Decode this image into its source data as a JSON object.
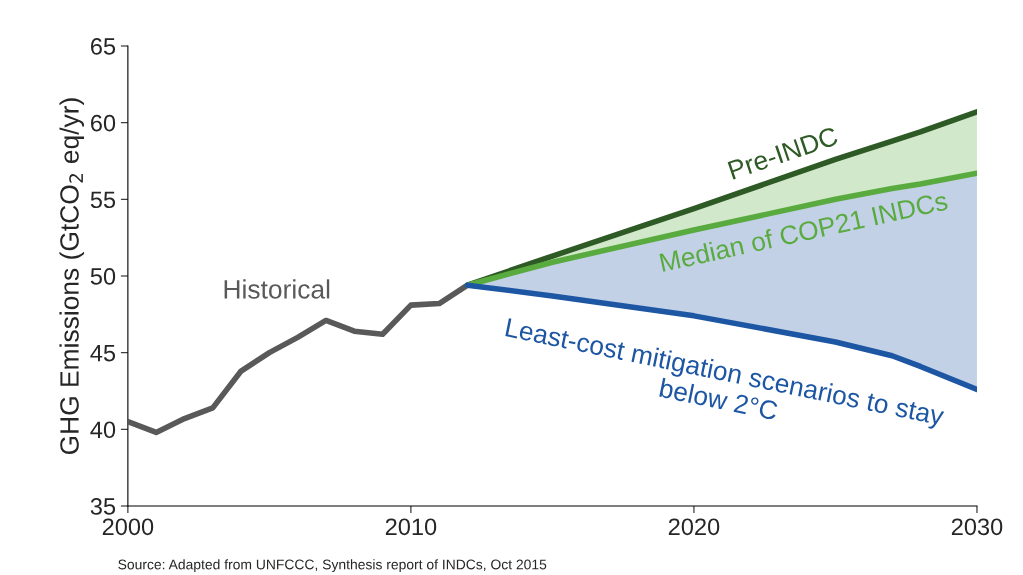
{
  "chart_data": {
    "type": "line",
    "ylabel": "GHG Emissions (GtCO$_{2}$ eq/yr)",
    "xlim": [
      2000,
      2030
    ],
    "xticks": [
      2000,
      2010,
      2020,
      2030
    ],
    "ylim": [
      35,
      65
    ],
    "yticks": [
      35,
      40,
      45,
      50,
      55,
      60,
      65
    ],
    "grid": false,
    "legend": false,
    "marker": "none",
    "line_style": "solid",
    "series": [
      {
        "name": "Historical",
        "color": "#595959",
        "x": [
          2000,
          2001,
          2002,
          2003,
          2004,
          2005,
          2006,
          2007,
          2008,
          2009,
          2010,
          2011,
          2012
        ],
        "values": [
          40.5,
          39.8,
          40.7,
          41.4,
          43.8,
          45.0,
          46.0,
          47.1,
          46.4,
          46.2,
          48.1,
          48.2,
          49.4
        ]
      },
      {
        "name": "Pre-INDC",
        "type": "area",
        "color": "#2e5a25",
        "x": [
          2012,
          2015,
          2020,
          2025,
          2027,
          2028,
          2030
        ],
        "values": [
          49.4,
          51.3,
          54.4,
          57.6,
          58.8,
          59.4,
          60.7
        ]
      },
      {
        "name": "Median of COP21 INDCs",
        "type": "area",
        "color": "#5aab3f",
        "x": [
          2012,
          2015,
          2020,
          2025,
          2027,
          2028,
          2030
        ],
        "values": [
          49.4,
          50.9,
          53.0,
          55.0,
          55.7,
          56.0,
          56.7
        ]
      },
      {
        "name": "Least-cost mitigation scenarios to stay\nbelow 2°C",
        "color": "#1d56a3",
        "x": [
          2012,
          2015,
          2020,
          2025,
          2027,
          2028,
          2030
        ],
        "values": [
          49.4,
          48.7,
          47.4,
          45.7,
          44.8,
          44.1,
          42.6
        ]
      }
    ],
    "annotations": [
      "Source: Adapted from UNFCCC, Synthesis report of INDCs, Oct 2015"
    ]
  }
}
